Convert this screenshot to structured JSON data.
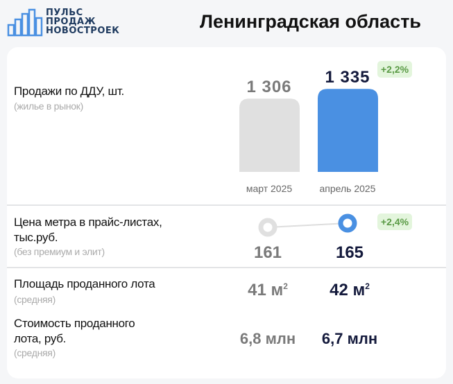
{
  "logo": {
    "lines": [
      "ПУЛЬС",
      "ПРОДАЖ",
      "НОВОСТРОЕК"
    ]
  },
  "title": "Ленинградская область",
  "sales": {
    "label": "Продажи по ДДУ, шт.",
    "note": "(жилье в рынок)",
    "badge": "+2,2%"
  },
  "price": {
    "label1": "Цена метра в прайс-листах,",
    "label2": "тыс.руб.",
    "note": "(без премиум и элит)",
    "badge": "+2,4%"
  },
  "area": {
    "label": "Площадь проданного лота",
    "note": "(средняя)",
    "prev": "41 м",
    "cur": "42 м",
    "unit_sup": "2"
  },
  "cost": {
    "label1": "Стоимость проданного",
    "label2": "лота, руб.",
    "note": "(средняя)",
    "prev": "6,8 млн",
    "cur": "6,7 млн"
  },
  "colors": {
    "prev": "#e0e0e0",
    "cur": "#4a90e2",
    "badge_bg": "#e3f5dc",
    "badge_text": "#5a9a45"
  },
  "chart_data": [
    {
      "type": "bar",
      "categories": [
        "март 2025",
        "апрель 2025"
      ],
      "values": [
        1306,
        1335
      ],
      "value_labels": [
        "1 306",
        "1 335"
      ],
      "title": "Продажи по ДДУ, шт."
    },
    {
      "type": "line",
      "categories": [
        "март 2025",
        "апрель 2025"
      ],
      "values": [
        161,
        165
      ],
      "value_labels": [
        "161",
        "165"
      ],
      "title": "Цена метра в прайс-листах, тыс.руб."
    }
  ]
}
